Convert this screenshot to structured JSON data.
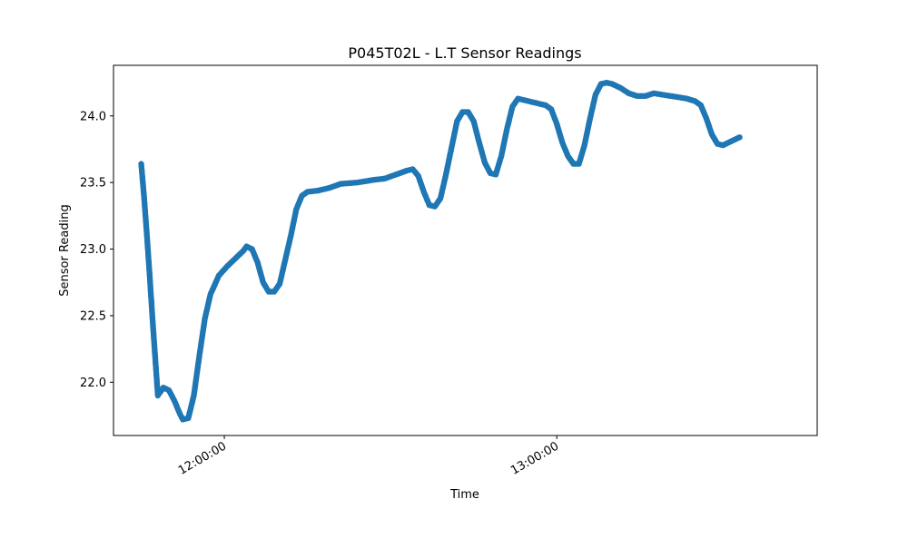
{
  "chart_data": {
    "type": "scatter",
    "title": "P045T02L - L.T Sensor Readings",
    "xlabel": "Time",
    "ylabel": "Sensor Reading",
    "x_unit": "time of day",
    "x_range": [
      "11:40:00",
      "13:47:00"
    ],
    "ylim": [
      21.6,
      24.38
    ],
    "yticks": [
      "22.0",
      "22.5",
      "23.0",
      "23.5",
      "24.0"
    ],
    "xticks": [
      {
        "value": "12:00:00",
        "label": "12:00:00"
      },
      {
        "value": "13:00:00",
        "label": "13:00:00"
      }
    ],
    "grid": false,
    "series_color": "#1f77b4",
    "series": [
      {
        "points": [
          [
            "11:45:00",
            23.64
          ],
          [
            "11:45:30",
            23.4
          ],
          [
            "11:46:00",
            23.12
          ],
          [
            "11:46:30",
            22.82
          ],
          [
            "11:47:00",
            22.5
          ],
          [
            "11:47:30",
            22.2
          ],
          [
            "11:48:00",
            21.9
          ],
          [
            "11:48:30",
            21.93
          ],
          [
            "11:49:00",
            21.96
          ],
          [
            "11:50:00",
            21.94
          ],
          [
            "11:51:00",
            21.86
          ],
          [
            "11:52:00",
            21.76
          ],
          [
            "11:52:30",
            21.72
          ],
          [
            "11:53:30",
            21.73
          ],
          [
            "11:54:30",
            21.9
          ],
          [
            "11:55:30",
            22.2
          ],
          [
            "11:56:30",
            22.48
          ],
          [
            "11:57:30",
            22.66
          ],
          [
            "11:59:00",
            22.8
          ],
          [
            "12:00:30",
            22.87
          ],
          [
            "12:02:00",
            22.93
          ],
          [
            "12:03:30",
            22.99
          ],
          [
            "12:04:00",
            23.02
          ],
          [
            "12:05:00",
            23.0
          ],
          [
            "12:06:00",
            22.9
          ],
          [
            "12:07:00",
            22.75
          ],
          [
            "12:08:00",
            22.68
          ],
          [
            "12:09:00",
            22.68
          ],
          [
            "12:10:00",
            22.74
          ],
          [
            "12:11:00",
            22.92
          ],
          [
            "12:12:00",
            23.1
          ],
          [
            "12:13:00",
            23.3
          ],
          [
            "12:14:00",
            23.4
          ],
          [
            "12:15:00",
            23.43
          ],
          [
            "12:17:00",
            23.44
          ],
          [
            "12:19:00",
            23.46
          ],
          [
            "12:21:00",
            23.49
          ],
          [
            "12:24:00",
            23.5
          ],
          [
            "12:27:00",
            23.52
          ],
          [
            "12:29:00",
            23.53
          ],
          [
            "12:31:00",
            23.56
          ],
          [
            "12:33:00",
            23.59
          ],
          [
            "12:34:00",
            23.6
          ],
          [
            "12:35:00",
            23.55
          ],
          [
            "12:36:00",
            23.43
          ],
          [
            "12:37:00",
            23.33
          ],
          [
            "12:38:00",
            23.32
          ],
          [
            "12:39:00",
            23.38
          ],
          [
            "12:40:00",
            23.56
          ],
          [
            "12:41:00",
            23.76
          ],
          [
            "12:42:00",
            23.96
          ],
          [
            "12:43:00",
            24.03
          ],
          [
            "12:44:00",
            24.03
          ],
          [
            "12:45:00",
            23.96
          ],
          [
            "12:46:00",
            23.8
          ],
          [
            "12:47:00",
            23.65
          ],
          [
            "12:48:00",
            23.57
          ],
          [
            "12:49:00",
            23.56
          ],
          [
            "12:50:00",
            23.7
          ],
          [
            "12:51:00",
            23.9
          ],
          [
            "12:52:00",
            24.07
          ],
          [
            "12:53:00",
            24.13
          ],
          [
            "12:54:00",
            24.12
          ],
          [
            "12:56:00",
            24.1
          ],
          [
            "12:58:00",
            24.08
          ],
          [
            "12:59:00",
            24.05
          ],
          [
            "13:00:00",
            23.94
          ],
          [
            "13:01:00",
            23.8
          ],
          [
            "13:02:00",
            23.7
          ],
          [
            "13:03:00",
            23.64
          ],
          [
            "13:04:00",
            23.64
          ],
          [
            "13:05:00",
            23.78
          ],
          [
            "13:06:00",
            23.98
          ],
          [
            "13:07:00",
            24.16
          ],
          [
            "13:08:00",
            24.24
          ],
          [
            "13:09:00",
            24.25
          ],
          [
            "13:10:00",
            24.24
          ],
          [
            "13:11:30",
            24.21
          ],
          [
            "13:13:00",
            24.17
          ],
          [
            "13:14:30",
            24.15
          ],
          [
            "13:16:00",
            24.15
          ],
          [
            "13:17:30",
            24.17
          ],
          [
            "13:19:00",
            24.16
          ],
          [
            "13:20:30",
            24.15
          ],
          [
            "13:22:00",
            24.14
          ],
          [
            "13:23:30",
            24.13
          ],
          [
            "13:25:00",
            24.11
          ],
          [
            "13:26:00",
            24.08
          ],
          [
            "13:27:00",
            23.98
          ],
          [
            "13:28:00",
            23.86
          ],
          [
            "13:29:00",
            23.79
          ],
          [
            "13:30:00",
            23.78
          ],
          [
            "13:31:00",
            23.8
          ],
          [
            "13:32:00",
            23.82
          ],
          [
            "13:33:00",
            23.84
          ]
        ]
      }
    ]
  }
}
